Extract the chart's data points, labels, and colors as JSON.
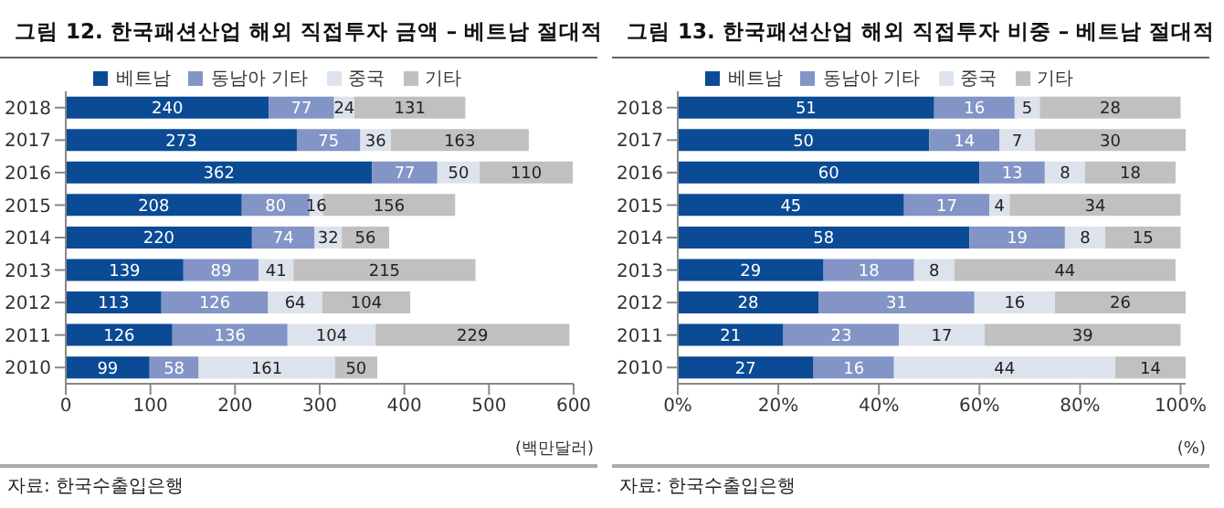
{
  "chart_data": [
    {
      "type": "bar",
      "title": "그림 12. 한국패션산업 해외 직접투자 금액 – 베트남 절대적",
      "orientation": "horizontal",
      "stacked": true,
      "categories": [
        "2018",
        "2017",
        "2016",
        "2015",
        "2014",
        "2013",
        "2012",
        "2011",
        "2010"
      ],
      "series": [
        {
          "name": "베트남",
          "color": "#0b4a94",
          "values": [
            240,
            273,
            362,
            208,
            220,
            139,
            113,
            126,
            99
          ]
        },
        {
          "name": "동남아 기타",
          "color": "#8394c6",
          "values": [
            77,
            75,
            77,
            80,
            74,
            89,
            126,
            136,
            58
          ]
        },
        {
          "name": "중국",
          "color": "#dde3ec",
          "values": [
            24,
            36,
            50,
            16,
            32,
            41,
            64,
            104,
            161
          ]
        },
        {
          "name": "기타",
          "color": "#c0c0c0",
          "values": [
            131,
            163,
            110,
            156,
            56,
            215,
            104,
            229,
            50
          ]
        }
      ],
      "xlim": [
        0,
        600
      ],
      "xticks": [
        0,
        100,
        200,
        300,
        400,
        500,
        600
      ],
      "xlabel": "(백만달러)",
      "data_labels": true,
      "legend": "top",
      "grid": false,
      "annotations": [
        "자료: 한국수출입은행"
      ]
    },
    {
      "type": "bar",
      "title": "그림 13. 한국패션산업 해외 직접투자 비중 – 베트남 절대적",
      "orientation": "horizontal",
      "stacked": true,
      "categories": [
        "2018",
        "2017",
        "2016",
        "2015",
        "2014",
        "2013",
        "2012",
        "2011",
        "2010"
      ],
      "series": [
        {
          "name": "베트남",
          "color": "#0b4a94",
          "values": [
            51,
            50,
            60,
            45,
            58,
            29,
            28,
            21,
            27
          ]
        },
        {
          "name": "동남아 기타",
          "color": "#8394c6",
          "values": [
            16,
            14,
            13,
            17,
            19,
            18,
            31,
            23,
            16
          ]
        },
        {
          "name": "중국",
          "color": "#dde3ec",
          "values": [
            5,
            7,
            8,
            4,
            8,
            8,
            16,
            17,
            44
          ]
        },
        {
          "name": "기타",
          "color": "#c0c0c0",
          "values": [
            28,
            30,
            18,
            34,
            15,
            44,
            26,
            39,
            14
          ]
        }
      ],
      "xlim": [
        0,
        101
      ],
      "xticks": [
        {
          "value": 0,
          "label": "0%"
        },
        {
          "value": 20,
          "label": "20%"
        },
        {
          "value": 40,
          "label": "40%"
        },
        {
          "value": 60,
          "label": "60%"
        },
        {
          "value": 80,
          "label": "80%"
        },
        {
          "value": 100,
          "label": "100%"
        }
      ],
      "xlabel": "(%)",
      "data_labels": true,
      "legend": "top",
      "grid": false,
      "annotations": [
        "자료: 한국수출입은행"
      ]
    }
  ]
}
